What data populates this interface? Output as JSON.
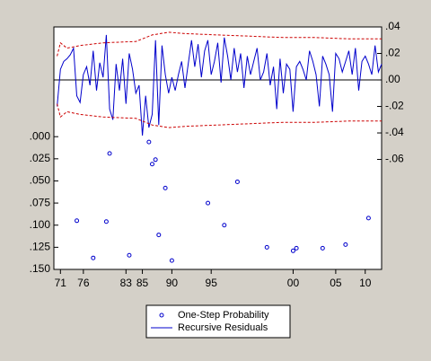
{
  "chart_data": {
    "type": "line",
    "xlim": [
      0,
      100
    ],
    "xticks": [
      {
        "value": 2,
        "label": "71"
      },
      {
        "value": 9,
        "label": "76"
      },
      {
        "value": 22,
        "label": "83"
      },
      {
        "value": 27,
        "label": "85"
      },
      {
        "value": 36,
        "label": "90"
      },
      {
        "value": 48,
        "label": "95"
      },
      {
        "value": 73,
        "label": "00"
      },
      {
        "value": 86,
        "label": "05"
      },
      {
        "value": 95,
        "label": "10"
      }
    ],
    "ylim": [
      0.15,
      -0.124
    ],
    "yticks": [
      {
        "value": 0,
        "label": ".000"
      },
      {
        "value": 0.025,
        "label": ".025"
      },
      {
        "value": 0.05,
        "label": ".050"
      },
      {
        "value": 0.075,
        "label": ".075"
      },
      {
        "value": 0.1,
        "label": ".100"
      },
      {
        "value": 0.125,
        "label": ".125"
      },
      {
        "value": 0.15,
        "label": ".150"
      }
    ],
    "y2lim": [
      -0.143,
      0.04
    ],
    "y2ticks": [
      {
        "value": 0.04,
        "label": ".04"
      },
      {
        "value": 0.02,
        "label": ".02"
      },
      {
        "value": 0,
        "label": ".00"
      },
      {
        "value": -0.02,
        "label": "-.02"
      },
      {
        "value": -0.04,
        "label": "-.04"
      },
      {
        "value": -0.06,
        "label": "-.06"
      }
    ],
    "series": [
      {
        "name": "One-Step Probability",
        "type": "scatter",
        "color": "#0000cc",
        "x": [
          7,
          12,
          16,
          17,
          23,
          29,
          30,
          31,
          32,
          34,
          36,
          47,
          52,
          56,
          65,
          73,
          74,
          82,
          89,
          96
        ],
        "values": [
          0.095,
          0.137,
          0.096,
          0.019,
          0.134,
          0.006,
          0.031,
          0.026,
          0.111,
          0.058,
          0.14,
          0.075,
          0.1,
          0.051,
          0.125,
          0.129,
          0.126,
          0.126,
          0.122,
          0.092
        ]
      },
      {
        "name": "Recursive Residuals",
        "type": "line",
        "axis": "y2",
        "color": "#0000cc",
        "x": [
          1,
          2,
          3,
          4,
          5,
          6,
          7,
          8,
          9,
          10,
          11,
          12,
          13,
          14,
          15,
          16,
          17,
          18,
          19,
          20,
          21,
          22,
          23,
          24,
          25,
          26,
          27,
          28,
          29,
          30,
          31,
          32,
          33,
          34,
          35,
          36,
          37,
          38,
          39,
          40,
          41,
          42,
          43,
          44,
          45,
          46,
          47,
          48,
          49,
          50,
          51,
          52,
          53,
          54,
          55,
          56,
          57,
          58,
          59,
          60,
          61,
          62,
          63,
          64,
          65,
          66,
          67,
          68,
          69,
          70,
          71,
          72,
          73,
          74,
          75,
          76,
          77,
          78,
          79,
          80,
          81,
          82,
          83,
          84,
          85,
          86,
          87,
          88,
          89,
          90,
          91,
          92,
          93,
          94,
          95,
          96,
          97,
          98,
          99,
          100
        ],
        "values": [
          -0.02,
          0.008,
          0.014,
          0.016,
          0.019,
          0.024,
          -0.012,
          -0.017,
          0.004,
          0.01,
          -0.004,
          0.022,
          -0.008,
          0.013,
          0.002,
          0.034,
          -0.022,
          -0.03,
          0.012,
          -0.008,
          0.016,
          -0.018,
          0.02,
          0.008,
          -0.01,
          -0.004,
          -0.042,
          -0.012,
          -0.036,
          -0.026,
          0.03,
          -0.034,
          0.026,
          0.004,
          -0.01,
          0.002,
          -0.008,
          0.004,
          0.014,
          -0.006,
          0.012,
          0.03,
          0.01,
          0.027,
          0.002,
          0.022,
          0.03,
          0.004,
          0.014,
          0.028,
          -0.002,
          0.032,
          0.018,
          0,
          0.024,
          0.006,
          0.02,
          -0.006,
          0.018,
          0.004,
          0.014,
          0.024,
          0,
          0.006,
          0.02,
          -0.004,
          0.01,
          -0.022,
          0.016,
          -0.01,
          0.012,
          0.008,
          -0.024,
          0.01,
          0.014,
          0.008,
          0,
          0.022,
          0.014,
          0.004,
          -0.02,
          0.018,
          0.012,
          0.004,
          -0.024,
          0.02,
          0.016,
          0.006,
          0.014,
          0.022,
          0.004,
          0.024,
          -0.008,
          0.014,
          0.018,
          0.012,
          0.004,
          0.026,
          0.006,
          0.012
        ]
      },
      {
        "type": "line",
        "axis": "y2",
        "color": "#cc0000",
        "dashed": true,
        "x": [
          1,
          2,
          4,
          8,
          15,
          25,
          30,
          35,
          40,
          50,
          60,
          70,
          80,
          90,
          100
        ],
        "values": [
          0.018,
          0.028,
          0.024,
          0.026,
          0.028,
          0.029,
          0.034,
          0.036,
          0.035,
          0.034,
          0.033,
          0.032,
          0.032,
          0.031,
          0.031
        ]
      },
      {
        "type": "line",
        "axis": "y2",
        "color": "#cc0000",
        "dashed": true,
        "x": [
          1,
          2,
          4,
          8,
          15,
          25,
          30,
          35,
          40,
          50,
          60,
          70,
          80,
          90,
          100
        ],
        "values": [
          -0.018,
          -0.028,
          -0.024,
          -0.026,
          -0.028,
          -0.029,
          -0.034,
          -0.036,
          -0.035,
          -0.034,
          -0.033,
          -0.032,
          -0.032,
          -0.031,
          -0.031
        ]
      }
    ]
  }
}
